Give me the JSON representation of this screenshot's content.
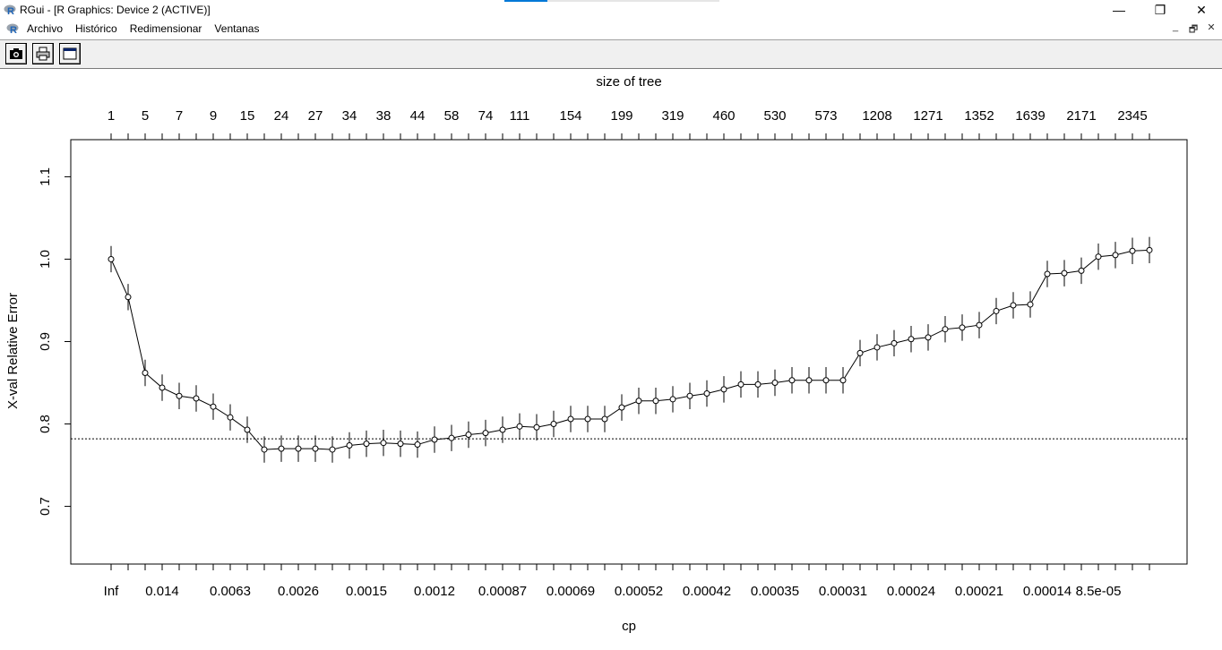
{
  "window": {
    "title": "RGui - [R Graphics: Device 2 (ACTIVE)]",
    "minimize_glyph": "—",
    "restore_glyph": "❐",
    "close_glyph": "✕"
  },
  "menu": {
    "items": [
      "Archivo",
      "Histórico",
      "Redimensionar",
      "Ventanas"
    ]
  },
  "mdi": {
    "minimize": "_",
    "restore": "🗗",
    "close": "✕"
  },
  "toolbar": {
    "buttons": [
      "camera-icon",
      "printer-icon",
      "window-icon"
    ]
  },
  "chart_data": {
    "type": "line",
    "top_axis_title": "size of tree",
    "xlabel": "cp",
    "ylabel": "X-val Relative Error",
    "ylim": [
      0.63,
      1.145
    ],
    "y_ticks": [
      "0.7",
      "0.8",
      "0.9",
      "1.0",
      "1.1"
    ],
    "reference_line": 0.782,
    "top_tick_labels": [
      "1",
      "5",
      "7",
      "9",
      "15",
      "24",
      "27",
      "34",
      "38",
      "44",
      "58",
      "74",
      "111",
      "154",
      "199",
      "319",
      "460",
      "530",
      "573",
      "1208",
      "1271",
      "1352",
      "1639",
      "2171",
      "2345"
    ],
    "bottom_tick_labels": [
      "Inf",
      "0.014",
      "0.0063",
      "0.0026",
      "0.0015",
      "0.0012",
      "0.00087",
      "0.00069",
      "0.00052",
      "0.00042",
      "0.00035",
      "0.00031",
      "0.00024",
      "0.00021",
      "0.00014",
      "8.5e-05"
    ],
    "n_points": 62,
    "values": [
      1.0,
      0.954,
      0.862,
      0.844,
      0.834,
      0.831,
      0.821,
      0.808,
      0.793,
      0.769,
      0.77,
      0.77,
      0.77,
      0.769,
      0.774,
      0.776,
      0.777,
      0.776,
      0.775,
      0.781,
      0.783,
      0.787,
      0.789,
      0.793,
      0.797,
      0.796,
      0.8,
      0.806,
      0.806,
      0.806,
      0.82,
      0.828,
      0.828,
      0.83,
      0.834,
      0.837,
      0.842,
      0.848,
      0.848,
      0.85,
      0.853,
      0.853,
      0.853,
      0.853,
      0.886,
      0.893,
      0.898,
      0.903,
      0.905,
      0.915,
      0.917,
      0.92,
      0.937,
      0.944,
      0.945,
      0.982,
      0.983,
      0.986,
      1.003,
      1.005,
      1.01,
      1.011
    ],
    "error_halfwidth": 0.016
  }
}
